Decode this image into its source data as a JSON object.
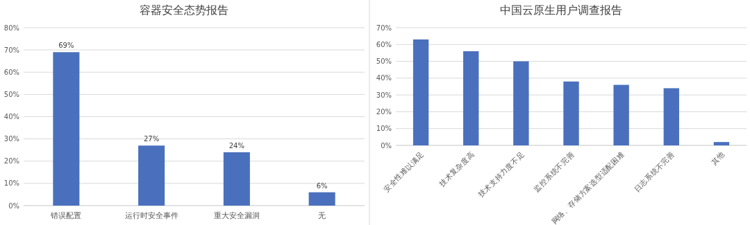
{
  "chart_data": [
    {
      "type": "bar",
      "title": "容器安全态势报告",
      "categories": [
        "错误配置",
        "运行时安全事件",
        "重大安全漏洞",
        "无"
      ],
      "values": [
        69,
        27,
        24,
        6
      ],
      "value_labels": [
        "69%",
        "27%",
        "24%",
        "6%"
      ],
      "color": "#4a70bd",
      "ylim": [
        0,
        80
      ],
      "yticks": [
        {
          "value": 0,
          "label": "0%"
        },
        {
          "value": 10,
          "label": "10%"
        },
        {
          "value": 20,
          "label": "20%"
        },
        {
          "value": 30,
          "label": "30%"
        },
        {
          "value": 40,
          "label": "40%"
        },
        {
          "value": 50,
          "label": "50%"
        },
        {
          "value": 60,
          "label": "60%"
        },
        {
          "value": 70,
          "label": "70%"
        },
        {
          "value": 80,
          "label": "80%"
        }
      ],
      "grid": "y"
    },
    {
      "type": "bar",
      "title": "中国云原生用户调查报告",
      "categories": [
        "安全性难以满足",
        "技术复杂度高",
        "技术支持力度不足",
        "监控系统不完善",
        "网络、存储方案选型适配困难",
        "日志系统不完善",
        "其他"
      ],
      "values": [
        63,
        56,
        50,
        38,
        36,
        34,
        2
      ],
      "color": "#4a70bd",
      "ylim": [
        0,
        70
      ],
      "yticks": [
        {
          "value": 0,
          "label": "0%"
        },
        {
          "value": 10,
          "label": "10%"
        },
        {
          "value": 20,
          "label": "20%"
        },
        {
          "value": 30,
          "label": "30%"
        },
        {
          "value": 40,
          "label": "40%"
        },
        {
          "value": 50,
          "label": "50%"
        },
        {
          "value": 60,
          "label": "60%"
        },
        {
          "value": 70,
          "label": "70%"
        }
      ],
      "grid": "y"
    }
  ]
}
